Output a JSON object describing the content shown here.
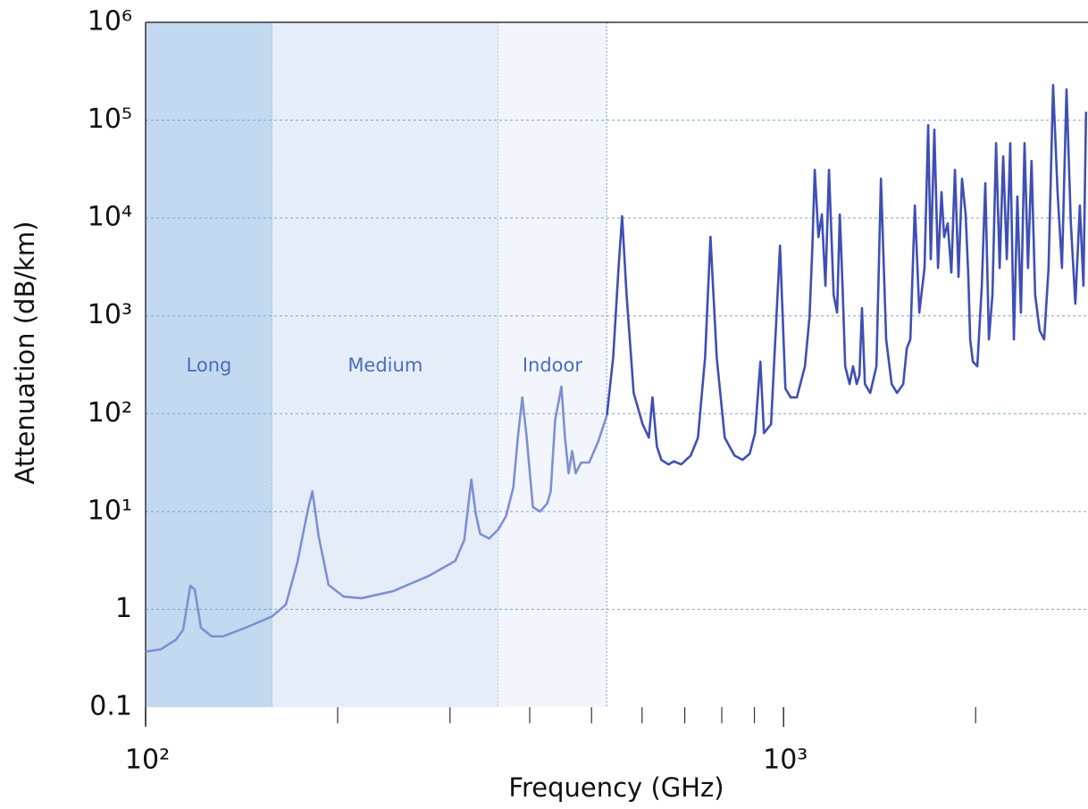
{
  "chart_data": {
    "type": "line",
    "x_label": "Frequency (GHz)",
    "y_label": "Attenuation (dB/km)",
    "xscale": "log",
    "yscale": "log",
    "xlim": [
      100,
      3000
    ],
    "ylim": [
      0.1,
      1000000
    ],
    "xticks": [
      {
        "value": 100,
        "label": "10²"
      },
      {
        "value": 1000,
        "label": "10³"
      }
    ],
    "xminorticks": [
      200,
      300,
      400,
      500,
      600,
      700,
      800,
      900,
      2000
    ],
    "yticks": [
      0.1,
      1,
      {
        "value": 10,
        "label": "10¹"
      },
      {
        "value": 100,
        "label": "10²"
      },
      {
        "value": 1000,
        "label": "10³"
      },
      {
        "value": 10000,
        "label": "10⁴"
      },
      {
        "value": 100000,
        "label": "10⁵"
      },
      {
        "value": 1000000,
        "label": "10⁶"
      }
    ],
    "grid": true,
    "regions": [
      {
        "label": "Long",
        "from": 100,
        "to": 158,
        "color": "#c3d9ef"
      },
      {
        "label": "Medium",
        "from": 158,
        "to": 357,
        "color": "#e5eef8"
      },
      {
        "label": "Indoor",
        "from": 357,
        "to": 528,
        "color": "#f2f6fc"
      }
    ],
    "series": [
      {
        "color": "#7f8fd2",
        "x": [
          100,
          105.6,
          111.6,
          114.5,
          117.5,
          119.4,
          122.1,
          126.9,
          132.3,
          143.5,
          158,
          165.9,
          172.9,
          179.7,
          182.6,
          186.7,
          193.5,
          204.4,
          218.1,
          244,
          277.6,
          305.8,
          315.8,
          324,
          329.2,
          334.5,
          345.5,
          356.8,
          367.3,
          377,
          383.2,
          389.4,
          395.7,
          404.6,
          415.2,
          426.1,
          431.5,
          438.5,
          448.5,
          454.3,
          460.3,
          466.2,
          472.2,
          481.4,
          495.6,
          511.8,
          528.5
        ],
        "values": [
          0.37,
          0.39,
          0.49,
          0.62,
          1.74,
          1.6,
          0.65,
          0.53,
          0.53,
          0.65,
          0.85,
          1.12,
          3.0,
          10.6,
          16.1,
          5.65,
          1.78,
          1.35,
          1.3,
          1.53,
          2.19,
          3.13,
          5.1,
          21.2,
          9.55,
          5.9,
          5.3,
          6.5,
          9.0,
          17.6,
          56.9,
          146.6,
          56.9,
          11.1,
          10,
          12.1,
          16.1,
          86.7,
          188.8,
          56.9,
          24.6,
          41.6,
          24.6,
          31.6,
          31.6,
          51.3,
          96.4
        ]
      },
      {
        "color": "#3f4fb5",
        "x": [
          528.5,
          540.6,
          551.2,
          558.3,
          567.4,
          582.1,
          601.2,
          614.9,
          622.9,
          633,
          643.3,
          660.1,
          673,
          690.9,
          715.4,
          734.1,
          753.3,
          768,
          785.5,
          808.6,
          837.5,
          862.4,
          884.9,
          902,
          919.6,
          931.5,
          955.7,
          987.2,
          1006.5,
          1026,
          1049,
          1080,
          1098,
          1109,
          1119,
          1134,
          1148,
          1163,
          1178,
          1198,
          1213,
          1225,
          1237,
          1249,
          1269,
          1285,
          1302,
          1315,
          1327,
          1341,
          1367,
          1398,
          1421,
          1448,
          1477,
          1506,
          1540,
          1560,
          1580,
          1606,
          1632,
          1663,
          1685,
          1701,
          1723,
          1746,
          1768,
          1785,
          1808,
          1832,
          1856,
          1880,
          1904,
          1929,
          1948,
          1961,
          1980,
          2012,
          2045,
          2071,
          2098,
          2125,
          2153,
          2181,
          2209,
          2238,
          2266,
          2296,
          2325,
          2355,
          2386,
          2416,
          2447,
          2479,
          2520,
          2561,
          2602,
          2645,
          2688,
          2731,
          2776,
          2820,
          2866,
          2913,
          2951,
          2979
        ],
        "values": [
          96.4,
          377,
          3084,
          10420,
          1641,
          163,
          78,
          56.9,
          146.6,
          46.1,
          33.7,
          30.3,
          32.6,
          30.3,
          37.4,
          56.9,
          377,
          6430,
          377,
          56.9,
          37.4,
          33.7,
          39,
          63.2,
          340,
          63.2,
          78,
          5210,
          181,
          146.6,
          146.6,
          305,
          971,
          4700,
          31100,
          6370,
          10870,
          2030,
          31100,
          1640,
          1080,
          10870,
          2030,
          305,
          201,
          305,
          201,
          248,
          1200,
          201,
          163,
          305,
          25200,
          574,
          201,
          163,
          201,
          466,
          574,
          13400,
          1080,
          3084,
          88900,
          3800,
          80000,
          3084,
          18400,
          6370,
          8800,
          2770,
          31100,
          2500,
          25200,
          10870,
          2500,
          574,
          340,
          305,
          2030,
          22700,
          574,
          1640,
          58300,
          3084,
          42700,
          3800,
          58300,
          574,
          16600,
          1080,
          58300,
          3084,
          38400,
          1640,
          708,
          574,
          3084,
          229000,
          18400,
          3084,
          206000,
          8800,
          1330,
          13400,
          2030,
          121900
        ]
      }
    ]
  }
}
